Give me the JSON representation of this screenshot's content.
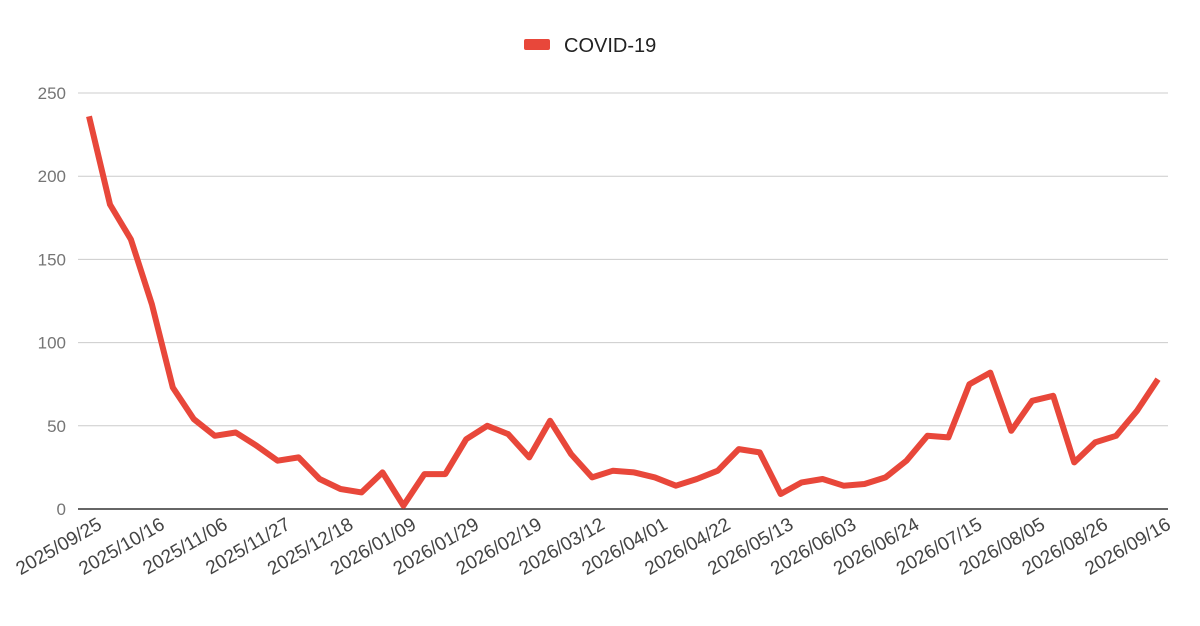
{
  "chart_data": {
    "type": "line",
    "title": "",
    "xlabel": "",
    "ylabel": "",
    "ylim": [
      0,
      250
    ],
    "y_ticks": [
      "0",
      "50",
      "100",
      "150",
      "200",
      "250"
    ],
    "x_tick_labels": [
      "2025/09/25",
      "2025/10/16",
      "2025/11/06",
      "2025/11/27",
      "2025/12/18",
      "2026/01/09",
      "2026/01/29",
      "2026/02/19",
      "2026/03/12",
      "2026/04/01",
      "2026/04/22",
      "2026/05/13",
      "2026/06/03",
      "2026/06/24",
      "2026/07/15",
      "2026/08/05",
      "2026/08/26",
      "2026/09/16"
    ],
    "grid": true,
    "legend_position": "top-center",
    "series": [
      {
        "name": "COVID-19",
        "color": "#e8473a",
        "values": [
          236,
          183,
          162,
          123,
          73,
          54,
          44,
          46,
          38,
          29,
          31,
          18,
          12,
          10,
          22,
          2,
          21,
          21,
          42,
          50,
          45,
          31,
          53,
          33,
          19,
          23,
          22,
          19,
          14,
          18,
          23,
          36,
          34,
          9,
          16,
          18,
          14,
          15,
          19,
          29,
          44,
          43,
          75,
          82,
          47,
          65,
          68,
          28,
          40,
          44,
          59,
          78
        ]
      }
    ]
  }
}
